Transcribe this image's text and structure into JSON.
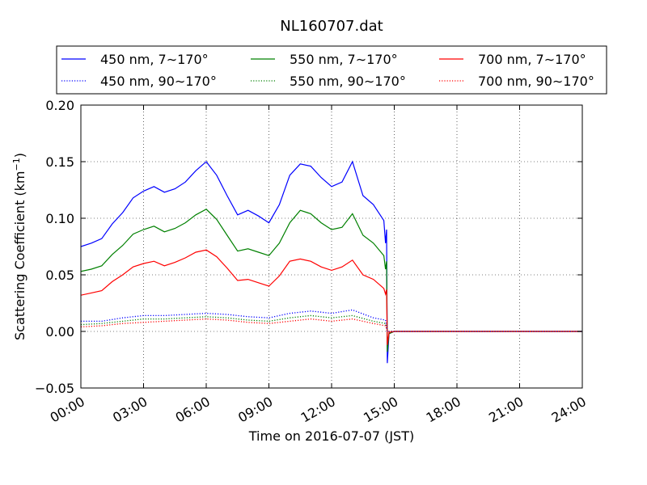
{
  "chart_data": {
    "type": "line",
    "title": "NL160707.dat",
    "xlabel": "Time on 2016-07-07 (JST)",
    "ylabel": "Scattering Coefficient (km",
    "ylabel_exp": "−1",
    "ylabel_close": ")",
    "xlim": [
      "00:00",
      "24:00"
    ],
    "ylim": [
      -0.05,
      0.2
    ],
    "grid": true,
    "legend_position": "top",
    "x_ticks": [
      "00:00",
      "03:00",
      "06:00",
      "09:00",
      "12:00",
      "15:00",
      "18:00",
      "21:00",
      "24:00"
    ],
    "y_ticks": [
      "−0.05",
      "0.00",
      "0.05",
      "0.10",
      "0.15",
      "0.20"
    ],
    "y_tick_values": [
      -0.05,
      0.0,
      0.05,
      0.1,
      0.15,
      0.2
    ],
    "series": [
      {
        "name": "450 nm, 7∼170°",
        "color": "#0000ff",
        "style": "solid",
        "x": [
          "00:00",
          "00:30",
          "01:00",
          "01:30",
          "02:00",
          "02:30",
          "03:00",
          "03:30",
          "04:00",
          "04:30",
          "05:00",
          "05:30",
          "06:00",
          "06:30",
          "07:00",
          "07:30",
          "08:00",
          "08:30",
          "09:00",
          "09:30",
          "10:00",
          "10:30",
          "11:00",
          "11:30",
          "12:00",
          "12:30",
          "13:00",
          "13:30",
          "14:00",
          "14:30",
          "14:35",
          "14:38",
          "14:40",
          "14:45",
          "15:00",
          "18:00",
          "21:00",
          "24:00"
        ],
        "y": [
          0.075,
          0.078,
          0.082,
          0.095,
          0.105,
          0.118,
          0.124,
          0.128,
          0.123,
          0.126,
          0.132,
          0.142,
          0.15,
          0.138,
          0.12,
          0.103,
          0.107,
          0.102,
          0.096,
          0.112,
          0.138,
          0.148,
          0.146,
          0.136,
          0.128,
          0.132,
          0.15,
          0.12,
          0.112,
          0.098,
          0.078,
          0.09,
          -0.028,
          -0.002,
          0.0,
          0.0,
          0.0,
          0.0
        ]
      },
      {
        "name": "550 nm, 7∼170°",
        "color": "#008000",
        "style": "solid",
        "x": [
          "00:00",
          "00:30",
          "01:00",
          "01:30",
          "02:00",
          "02:30",
          "03:00",
          "03:30",
          "04:00",
          "04:30",
          "05:00",
          "05:30",
          "06:00",
          "06:30",
          "07:00",
          "07:30",
          "08:00",
          "08:30",
          "09:00",
          "09:30",
          "10:00",
          "10:30",
          "11:00",
          "11:30",
          "12:00",
          "12:30",
          "13:00",
          "13:30",
          "14:00",
          "14:30",
          "14:35",
          "14:38",
          "14:40",
          "14:45",
          "15:00",
          "18:00",
          "21:00",
          "24:00"
        ],
        "y": [
          0.053,
          0.055,
          0.058,
          0.068,
          0.076,
          0.086,
          0.09,
          0.093,
          0.088,
          0.091,
          0.096,
          0.103,
          0.108,
          0.099,
          0.085,
          0.071,
          0.073,
          0.07,
          0.067,
          0.078,
          0.096,
          0.107,
          0.104,
          0.096,
          0.09,
          0.092,
          0.104,
          0.085,
          0.078,
          0.067,
          0.055,
          0.062,
          -0.018,
          -0.002,
          0.0,
          0.0,
          0.0,
          0.0
        ]
      },
      {
        "name": "700 nm, 7∼170°",
        "color": "#ff0000",
        "style": "solid",
        "x": [
          "00:00",
          "00:30",
          "01:00",
          "01:30",
          "02:00",
          "02:30",
          "03:00",
          "03:30",
          "04:00",
          "04:30",
          "05:00",
          "05:30",
          "06:00",
          "06:30",
          "07:00",
          "07:30",
          "08:00",
          "08:30",
          "09:00",
          "09:30",
          "10:00",
          "10:30",
          "11:00",
          "11:30",
          "12:00",
          "12:30",
          "13:00",
          "13:30",
          "14:00",
          "14:30",
          "14:35",
          "14:38",
          "14:40",
          "14:45",
          "15:00",
          "18:00",
          "21:00",
          "24:00"
        ],
        "y": [
          0.032,
          0.034,
          0.036,
          0.044,
          0.05,
          0.057,
          0.06,
          0.062,
          0.058,
          0.061,
          0.065,
          0.07,
          0.072,
          0.066,
          0.056,
          0.045,
          0.046,
          0.043,
          0.04,
          0.049,
          0.062,
          0.064,
          0.062,
          0.057,
          0.054,
          0.057,
          0.063,
          0.05,
          0.046,
          0.038,
          0.033,
          0.037,
          -0.012,
          -0.001,
          0.0,
          0.0,
          0.0,
          0.0
        ]
      },
      {
        "name": "450 nm, 90∼170°",
        "color": "#0000ff",
        "style": "dotted",
        "x": [
          "00:00",
          "01:00",
          "02:00",
          "03:00",
          "04:00",
          "05:00",
          "06:00",
          "07:00",
          "08:00",
          "09:00",
          "10:00",
          "11:00",
          "12:00",
          "13:00",
          "14:00",
          "14:35",
          "14:40",
          "15:00",
          "18:00",
          "21:00",
          "24:00"
        ],
        "y": [
          0.009,
          0.009,
          0.012,
          0.014,
          0.014,
          0.015,
          0.016,
          0.015,
          0.013,
          0.012,
          0.016,
          0.018,
          0.016,
          0.019,
          0.012,
          0.01,
          0.0,
          0.0,
          0.0,
          0.0,
          0.0
        ]
      },
      {
        "name": "550 nm, 90∼170°",
        "color": "#008000",
        "style": "dotted",
        "x": [
          "00:00",
          "01:00",
          "02:00",
          "03:00",
          "04:00",
          "05:00",
          "06:00",
          "07:00",
          "08:00",
          "09:00",
          "10:00",
          "11:00",
          "12:00",
          "13:00",
          "14:00",
          "14:35",
          "14:40",
          "15:00",
          "18:00",
          "21:00",
          "24:00"
        ],
        "y": [
          0.006,
          0.007,
          0.009,
          0.011,
          0.011,
          0.012,
          0.013,
          0.012,
          0.01,
          0.009,
          0.012,
          0.014,
          0.012,
          0.014,
          0.009,
          0.007,
          0.0,
          0.0,
          0.0,
          0.0,
          0.0
        ]
      },
      {
        "name": "700 nm, 90∼170°",
        "color": "#ff0000",
        "style": "dotted",
        "x": [
          "00:00",
          "01:00",
          "02:00",
          "03:00",
          "04:00",
          "05:00",
          "06:00",
          "07:00",
          "08:00",
          "09:00",
          "10:00",
          "11:00",
          "12:00",
          "13:00",
          "14:00",
          "14:35",
          "14:40",
          "15:00",
          "18:00",
          "21:00",
          "24:00"
        ],
        "y": [
          0.004,
          0.005,
          0.007,
          0.008,
          0.009,
          0.01,
          0.011,
          0.01,
          0.008,
          0.007,
          0.009,
          0.011,
          0.009,
          0.011,
          0.007,
          0.005,
          0.0,
          0.0,
          0.0,
          0.0,
          0.0
        ]
      }
    ],
    "legend_order": [
      0,
      1,
      2,
      3,
      4,
      5
    ]
  }
}
